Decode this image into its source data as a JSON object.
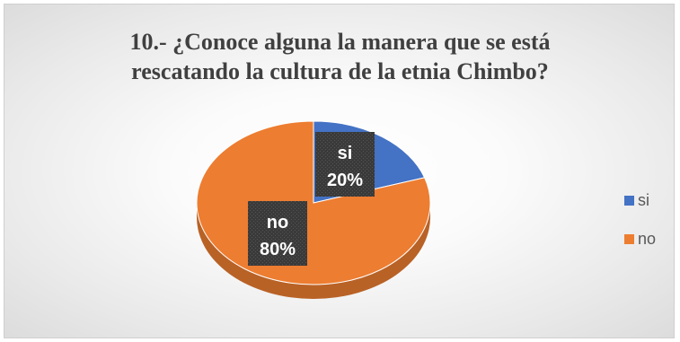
{
  "chart_data": {
    "type": "pie",
    "style": "3d",
    "title_lines": [
      "10.- ¿Conoce alguna la manera que se está",
      "rescatando la cultura de la etnia Chimbo?"
    ],
    "slices": [
      {
        "name": "si",
        "value": 20,
        "label": "20%",
        "color": "#4472C4"
      },
      {
        "name": "no",
        "value": 80,
        "label": "80%",
        "color": "#ED7D31"
      }
    ],
    "legend": {
      "position": "right",
      "entries": [
        "si",
        "no"
      ]
    }
  }
}
